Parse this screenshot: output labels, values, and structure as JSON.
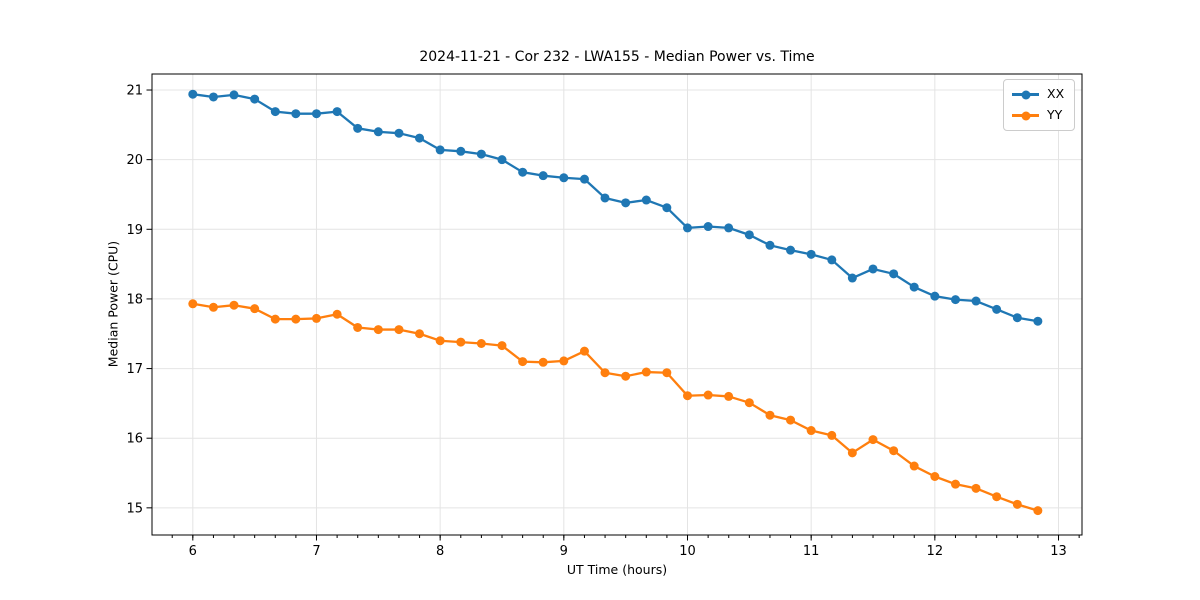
{
  "figure": {
    "background": "#ffffff"
  },
  "chart_data": {
    "type": "line",
    "title": "2024-11-21 - Cor 232 - LWA155 - Median Power vs. Time",
    "xlabel": "UT Time (hours)",
    "ylabel": "Median Power (CPU)",
    "xlim": [
      5.67,
      13.19
    ],
    "ylim": [
      14.61,
      21.23
    ],
    "x_ticks": [
      6,
      7,
      8,
      9,
      10,
      11,
      12,
      13
    ],
    "y_ticks": [
      15,
      16,
      17,
      18,
      19,
      20,
      21
    ],
    "x_minor_tick_interval": 0.16667,
    "grid": true,
    "grid_color": "#e4e4e4",
    "legend": {
      "position": "upper right",
      "entries": [
        "XX",
        "YY"
      ]
    },
    "x": [
      6.0,
      6.167,
      6.333,
      6.5,
      6.667,
      6.833,
      7.0,
      7.167,
      7.333,
      7.5,
      7.667,
      7.833,
      8.0,
      8.167,
      8.333,
      8.5,
      8.667,
      8.833,
      9.0,
      9.167,
      9.333,
      9.5,
      9.667,
      9.833,
      10.0,
      10.167,
      10.333,
      10.5,
      10.667,
      10.833,
      11.0,
      11.167,
      11.333,
      11.5,
      11.667,
      11.833,
      12.0,
      12.167,
      12.333,
      12.5,
      12.667,
      12.833
    ],
    "series": [
      {
        "name": "XX",
        "color": "#1f77b4",
        "values": [
          20.94,
          20.9,
          20.93,
          20.87,
          20.69,
          20.66,
          20.66,
          20.69,
          20.45,
          20.4,
          20.38,
          20.31,
          20.14,
          20.12,
          20.08,
          20.0,
          19.82,
          19.77,
          19.74,
          19.72,
          19.45,
          19.38,
          19.42,
          19.31,
          19.02,
          19.04,
          19.02,
          18.92,
          18.77,
          18.7,
          18.64,
          18.56,
          18.3,
          18.43,
          18.36,
          18.17,
          18.04,
          17.99,
          17.97,
          17.85,
          17.73,
          17.68
        ]
      },
      {
        "name": "YY",
        "color": "#ff7f0e",
        "values": [
          17.93,
          17.88,
          17.91,
          17.86,
          17.71,
          17.71,
          17.72,
          17.78,
          17.59,
          17.56,
          17.56,
          17.5,
          17.4,
          17.38,
          17.36,
          17.33,
          17.1,
          17.09,
          17.11,
          17.25,
          16.94,
          16.89,
          16.95,
          16.94,
          16.61,
          16.62,
          16.6,
          16.51,
          16.33,
          16.26,
          16.11,
          16.04,
          15.79,
          15.98,
          15.82,
          15.6,
          15.45,
          15.34,
          15.28,
          15.16,
          15.05,
          14.96
        ]
      }
    ]
  }
}
